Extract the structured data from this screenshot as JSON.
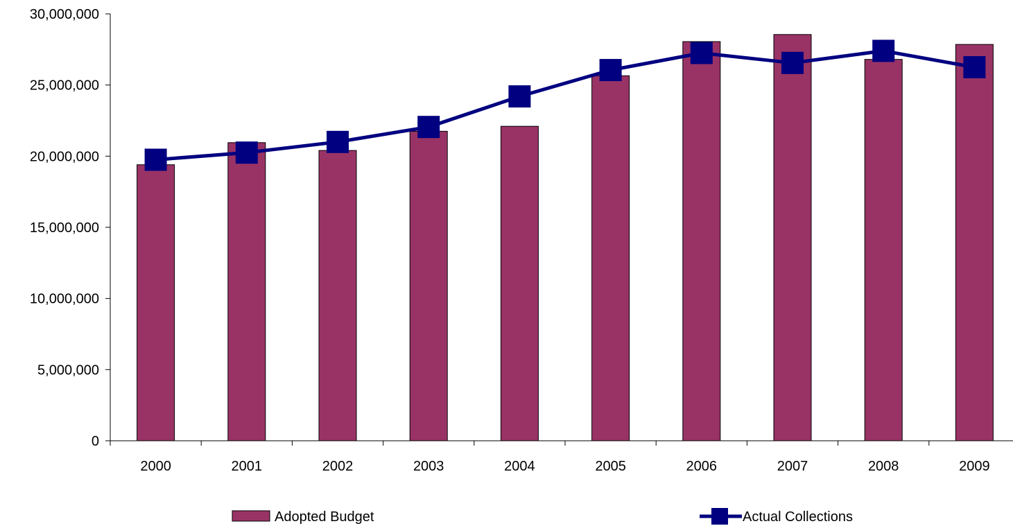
{
  "chart_data": {
    "type": "bar",
    "categories": [
      "2000",
      "2001",
      "2002",
      "2003",
      "2004",
      "2005",
      "2006",
      "2007",
      "2008",
      "2009"
    ],
    "series": [
      {
        "name": "Adopted Budget",
        "type": "bar",
        "color": "#993366",
        "values": [
          19400000,
          20950000,
          20400000,
          21750000,
          22100000,
          25650000,
          28050000,
          28550000,
          26800000,
          27850000
        ]
      },
      {
        "name": "Actual Collections",
        "type": "line",
        "marker": "square",
        "color": "#000080",
        "values": [
          19750000,
          20250000,
          21000000,
          22050000,
          24200000,
          26050000,
          27250000,
          26550000,
          27400000,
          26250000
        ]
      }
    ],
    "ylim": [
      0,
      30000000
    ],
    "yticks": [
      0,
      5000000,
      10000000,
      15000000,
      20000000,
      25000000,
      30000000
    ],
    "ytick_labels": [
      "0",
      "5,000,000",
      "10,000,000",
      "15,000,000",
      "20,000,000",
      "25,000,000",
      "30,000,000"
    ],
    "grid": false,
    "legend_position": "bottom"
  }
}
